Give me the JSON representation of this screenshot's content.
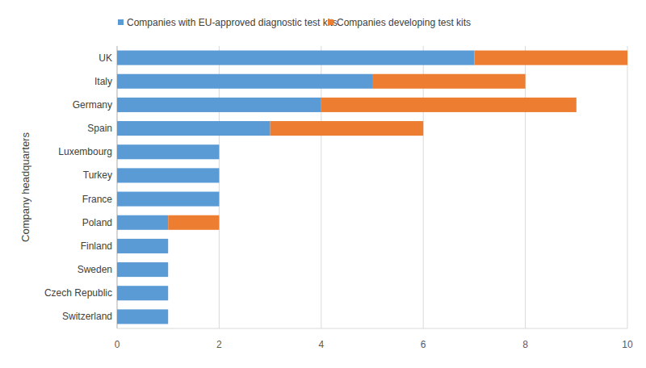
{
  "chart_data": {
    "type": "bar",
    "orientation": "horizontal",
    "stacked": true,
    "y_label": "Company headquarters",
    "categories": [
      "UK",
      "Italy",
      "Germany",
      "Spain",
      "Luxembourg",
      "Turkey",
      "France",
      "Poland",
      "Finland",
      "Sweden",
      "Czech Republic",
      "Switzerland"
    ],
    "series": [
      {
        "name": "Companies with EU-approved diagnostic test kits",
        "color": "#5b9bd5",
        "values": [
          7,
          5,
          4,
          3,
          2,
          2,
          2,
          1,
          1,
          1,
          1,
          1
        ]
      },
      {
        "name": "Companies developing test kits",
        "color": "#ed7d31",
        "values": [
          3,
          3,
          5,
          3,
          0,
          0,
          0,
          1,
          0,
          0,
          0,
          0
        ]
      }
    ],
    "xlim": [
      0,
      10
    ],
    "xticks": [
      0,
      2,
      4,
      6,
      8,
      10
    ],
    "grid": true,
    "legend": "top"
  }
}
